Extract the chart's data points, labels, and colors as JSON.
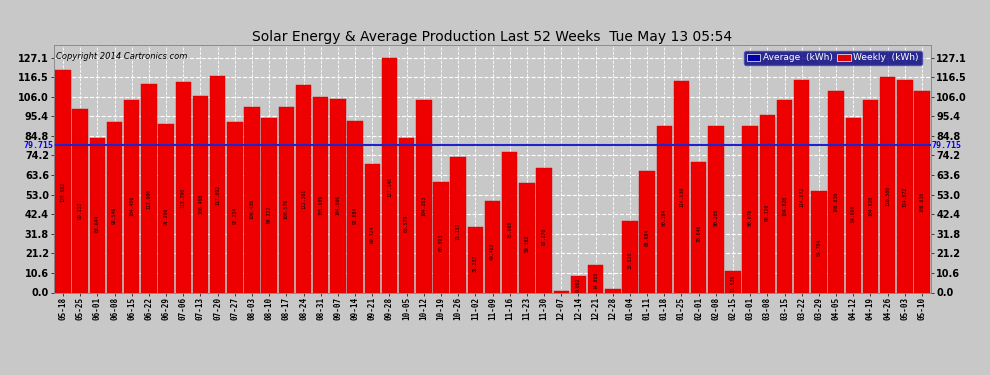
{
  "title": "Solar Energy & Average Production Last 52 Weeks  Tue May 13 05:54",
  "copyright": "Copyright 2014 Cartronics.com",
  "average_value": 79.715,
  "bar_color": "#EE0000",
  "bar_edge_color": "#CC0000",
  "average_line_color": "#2222CC",
  "background_color": "#C8C8C8",
  "plot_bg_color": "#C8C8C8",
  "legend_avg_color": "#0000AA",
  "legend_weekly_color": "#DD0000",
  "ytick_values": [
    0.0,
    10.6,
    21.2,
    31.8,
    42.4,
    53.0,
    63.6,
    74.2,
    84.8,
    95.4,
    106.0,
    116.5,
    127.1
  ],
  "ytick_labels": [
    "0.0",
    "10.6",
    "21.2",
    "31.8",
    "42.4",
    "53.0",
    "63.6",
    "74.2",
    "84.8",
    "95.4",
    "106.0",
    "116.5",
    "127.1"
  ],
  "ylim_max": 134.0,
  "categories": [
    "05-18",
    "05-25",
    "06-01",
    "06-08",
    "06-15",
    "06-22",
    "06-29",
    "07-06",
    "07-13",
    "07-20",
    "07-27",
    "08-03",
    "08-10",
    "08-17",
    "08-24",
    "08-31",
    "09-07",
    "09-14",
    "09-21",
    "09-28",
    "10-05",
    "10-12",
    "10-19",
    "10-26",
    "11-02",
    "11-09",
    "11-16",
    "11-23",
    "11-30",
    "12-07",
    "12-14",
    "12-21",
    "12-28",
    "01-04",
    "01-11",
    "01-18",
    "01-25",
    "02-01",
    "02-08",
    "02-15",
    "03-01",
    "03-08",
    "03-15",
    "03-22",
    "03-29",
    "04-05",
    "04-12",
    "04-19",
    "04-26",
    "05-03",
    "05-10"
  ],
  "values": [
    120.582,
    99.112,
    83.644,
    92.546,
    104.406,
    112.9,
    91.29,
    113.79,
    106.468,
    117.092,
    92.224,
    100.436,
    94.222,
    100.576,
    112.301,
    105.609,
    104.966,
    92.884,
    69.724,
    127.14,
    83.579,
    104.283,
    60.093,
    73.137,
    35.237,
    49.463,
    75.968,
    59.302,
    67.27,
    1.053,
    9.092,
    14.885,
    1.752,
    38.526,
    65.984,
    90.104,
    114.538,
    70.84,
    90.28,
    11.528,
    90.076,
    96.12,
    104.028,
    114.872,
    54.704,
    108.83,
    94.65,
    104.028,
    116.5,
    114.872,
    108.83
  ],
  "avg_label": "79.715"
}
